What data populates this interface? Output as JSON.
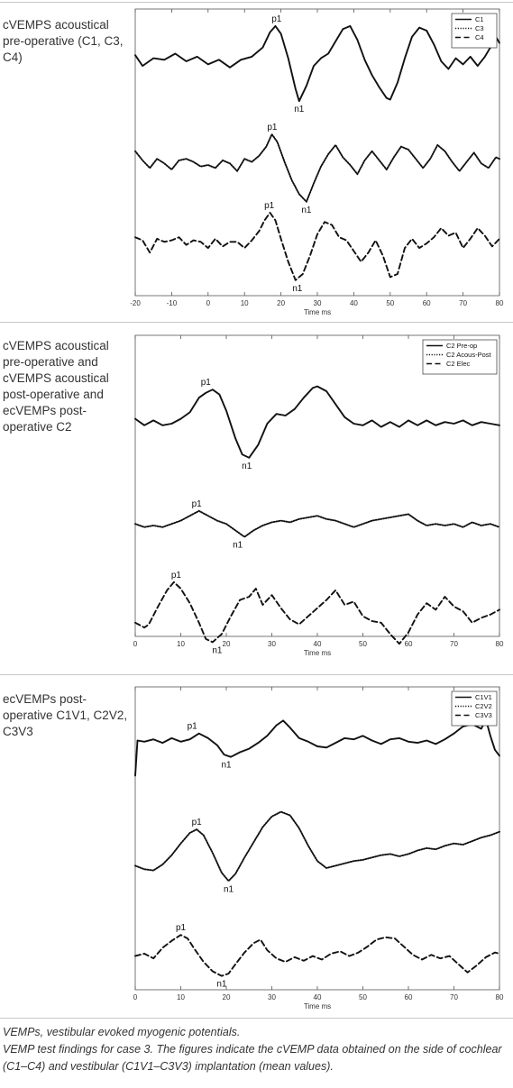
{
  "caption": {
    "abbrev": "VEMPs, vestibular evoked myogenic potentials.",
    "text": "VEMP test findings for case 3. The figures indicate the cVEMP data obtained on the side of cochlear (C1–C4) and vestibular (C1V1–C3V3) implantation (mean values)."
  },
  "chart_data": [
    {
      "type": "line",
      "row_label": "cVEMPS acoustical pre-operative (C1, C3, C4)",
      "xlabel": "Time ms",
      "xlim": [
        -20,
        80
      ],
      "xticks": [
        -20,
        -10,
        0,
        10,
        20,
        30,
        40,
        50,
        60,
        70,
        80
      ],
      "legend_position": "top-right",
      "series": [
        {
          "name": "C1",
          "style": "solid",
          "offset": 0,
          "x": [
            -20,
            -18,
            -15,
            -12,
            -9,
            -6,
            -3,
            0,
            3,
            6,
            9,
            12,
            15,
            17,
            18.5,
            20,
            22,
            24,
            25,
            27,
            29,
            31,
            33,
            35,
            37,
            39,
            41,
            43,
            45,
            47,
            49,
            50,
            52,
            54,
            56,
            58,
            60,
            62,
            64,
            66,
            68,
            70,
            72,
            74,
            76,
            78,
            79,
            80
          ],
          "y": [
            0.4,
            -0.3,
            0.2,
            0.1,
            0.5,
            0.0,
            0.3,
            -0.2,
            0.1,
            -0.4,
            0.1,
            0.3,
            0.9,
            1.9,
            2.3,
            1.8,
            0.2,
            -1.8,
            -2.6,
            -1.6,
            -0.3,
            0.2,
            0.5,
            1.3,
            2.1,
            2.3,
            1.4,
            0.1,
            -0.9,
            -1.7,
            -2.4,
            -2.5,
            -1.4,
            0.2,
            1.6,
            2.2,
            2.0,
            1.1,
            0.0,
            -0.5,
            0.2,
            -0.2,
            0.3,
            -0.3,
            0.3,
            1.1,
            1.6,
            1.2
          ]
        },
        {
          "name": "C3",
          "style": "dotted",
          "offset": 0,
          "x": [
            -20,
            -18,
            -16,
            -14,
            -12,
            -10,
            -8,
            -6,
            -4,
            -2,
            0,
            2,
            4,
            6,
            8,
            10,
            12,
            14,
            16,
            17.5,
            19,
            21,
            23,
            25,
            27,
            29,
            31,
            33,
            35,
            37,
            39,
            41,
            43,
            45,
            47,
            49,
            51,
            53,
            55,
            57,
            59,
            61,
            63,
            65,
            67,
            69,
            71,
            73,
            75,
            77,
            79,
            80
          ],
          "y": [
            0.9,
            0.3,
            -0.2,
            0.4,
            0.1,
            -0.3,
            0.3,
            0.4,
            0.2,
            -0.1,
            0.0,
            -0.2,
            0.3,
            0.1,
            -0.4,
            0.4,
            0.2,
            0.6,
            1.2,
            2.0,
            1.5,
            0.2,
            -1.0,
            -1.9,
            -2.4,
            -1.2,
            -0.1,
            0.7,
            1.3,
            0.5,
            0.0,
            -0.6,
            0.3,
            0.9,
            0.3,
            -0.3,
            0.5,
            1.2,
            1.0,
            0.4,
            -0.2,
            0.4,
            1.3,
            0.9,
            0.2,
            -0.4,
            0.2,
            0.8,
            0.1,
            -0.2,
            0.5,
            0.4
          ]
        },
        {
          "name": "C4",
          "style": "dashed",
          "offset": 0,
          "x": [
            -20,
            -18,
            -16,
            -14,
            -12,
            -10,
            -8,
            -6,
            -4,
            -2,
            0,
            2,
            4,
            6,
            8,
            10,
            12,
            14,
            15.5,
            17,
            18.5,
            20,
            22,
            24,
            26,
            28,
            30,
            32,
            34,
            36,
            38,
            40,
            42,
            44,
            46,
            48,
            50,
            52,
            54,
            56,
            58,
            60,
            62,
            64,
            66,
            68,
            70,
            72,
            74,
            76,
            78,
            80
          ],
          "y": [
            0.4,
            0.2,
            -0.6,
            0.3,
            0.1,
            0.2,
            0.4,
            -0.1,
            0.2,
            0.1,
            -0.3,
            0.3,
            -0.2,
            0.1,
            0.1,
            -0.3,
            0.2,
            0.8,
            1.5,
            2.0,
            1.5,
            0.3,
            -1.2,
            -2.4,
            -2.0,
            -0.8,
            0.6,
            1.4,
            1.2,
            0.4,
            0.2,
            -0.5,
            -1.2,
            -0.6,
            0.2,
            -0.8,
            -2.2,
            -2.0,
            -0.3,
            0.3,
            -0.3,
            0.0,
            0.4,
            1.0,
            0.5,
            0.7,
            -0.3,
            0.3,
            1.0,
            0.5,
            -0.2,
            0.3
          ]
        }
      ],
      "annotations": [
        {
          "text": "p1",
          "x": 18.8,
          "y": 2.3,
          "series": "C1",
          "pos": "above"
        },
        {
          "text": "n1",
          "x": 25,
          "y": -2.6,
          "series": "C1",
          "pos": "below"
        },
        {
          "text": "p1",
          "x": 17.6,
          "y": 2.0,
          "series": "C3",
          "pos": "above"
        },
        {
          "text": "n1",
          "x": 27,
          "y": -2.4,
          "series": "C3",
          "pos": "below"
        },
        {
          "text": "p1",
          "x": 16.8,
          "y": 2.0,
          "series": "C4",
          "pos": "above"
        },
        {
          "text": "n1",
          "x": 24.5,
          "y": -2.4,
          "series": "C4",
          "pos": "below"
        }
      ]
    },
    {
      "type": "line",
      "row_label": "cVEMPS acoustical pre-operative and cVEMPS acoustical post-operative and ecVEMPs post-operative C2",
      "xlabel": "Time ms",
      "xlim": [
        0,
        80
      ],
      "xticks": [
        0,
        10,
        20,
        30,
        40,
        50,
        60,
        70,
        80
      ],
      "legend_position": "top-right",
      "series": [
        {
          "name": "C2 Pre-op",
          "style": "solid",
          "offset": 0,
          "x": [
            0,
            2,
            4,
            6,
            8,
            10,
            12,
            14,
            15.5,
            17,
            18.5,
            20,
            22,
            23.5,
            25,
            27,
            29,
            31,
            33,
            35,
            37,
            39,
            40,
            42,
            44,
            46,
            48,
            50,
            52,
            54,
            56,
            58,
            60,
            62,
            64,
            66,
            68,
            70,
            72,
            74,
            76,
            78,
            80
          ],
          "y": [
            0.3,
            -0.1,
            0.2,
            -0.1,
            0.0,
            0.3,
            0.7,
            1.6,
            1.9,
            2.1,
            1.8,
            0.8,
            -0.9,
            -1.9,
            -2.1,
            -1.3,
            0.0,
            0.6,
            0.5,
            0.9,
            1.6,
            2.2,
            2.3,
            2.0,
            1.2,
            0.4,
            0.0,
            -0.1,
            0.2,
            -0.2,
            0.1,
            -0.2,
            0.2,
            -0.1,
            0.2,
            -0.1,
            0.1,
            0.0,
            0.2,
            -0.1,
            0.1,
            0.0,
            -0.1
          ]
        },
        {
          "name": "C2 Acous-Post",
          "style": "dotted",
          "offset": 0,
          "x": [
            0,
            2,
            4,
            6,
            8,
            10,
            12,
            14,
            16,
            18,
            20,
            22,
            24,
            26,
            28,
            30,
            32,
            34,
            36,
            38,
            40,
            42,
            44,
            46,
            48,
            50,
            52,
            54,
            56,
            58,
            60,
            62,
            64,
            66,
            68,
            70,
            72,
            74,
            76,
            78,
            80
          ],
          "y": [
            0.1,
            -0.1,
            0.0,
            -0.1,
            0.1,
            0.3,
            0.6,
            0.9,
            0.6,
            0.3,
            0.1,
            -0.3,
            -0.7,
            -0.3,
            0.0,
            0.2,
            0.3,
            0.2,
            0.4,
            0.5,
            0.6,
            0.4,
            0.3,
            0.1,
            -0.1,
            0.1,
            0.3,
            0.4,
            0.5,
            0.6,
            0.7,
            0.3,
            0.0,
            0.1,
            0.0,
            0.1,
            -0.1,
            0.2,
            0.0,
            0.1,
            -0.1
          ]
        },
        {
          "name": "C2 Elec",
          "style": "dashed",
          "offset": 0,
          "x": [
            0,
            2,
            3,
            5,
            7,
            8.5,
            10,
            12,
            14,
            15.5,
            17,
            19,
            21,
            23,
            25,
            26.5,
            28,
            30,
            32,
            34,
            36,
            38,
            40,
            42,
            44,
            46,
            48,
            50,
            52,
            54,
            56,
            58,
            60,
            62,
            64,
            66,
            68,
            70,
            72,
            74,
            76,
            78,
            80
          ],
          "y": [
            -0.6,
            -0.9,
            -0.7,
            0.4,
            1.4,
            1.9,
            1.5,
            0.6,
            -0.6,
            -1.6,
            -1.8,
            -1.3,
            -0.2,
            0.8,
            1.0,
            1.5,
            0.5,
            1.1,
            0.3,
            -0.4,
            -0.7,
            -0.2,
            0.3,
            0.8,
            1.4,
            0.5,
            0.7,
            -0.2,
            -0.5,
            -0.6,
            -1.3,
            -1.9,
            -1.2,
            -0.1,
            0.6,
            0.2,
            1.0,
            0.4,
            0.1,
            -0.6,
            -0.3,
            -0.1,
            0.2
          ]
        }
      ],
      "annotations": [
        {
          "text": "p1",
          "x": 15.5,
          "y": 2.1,
          "series": "C2 Pre-op",
          "pos": "above"
        },
        {
          "text": "n1",
          "x": 24.5,
          "y": -2.1,
          "series": "C2 Pre-op",
          "pos": "below"
        },
        {
          "text": "p1",
          "x": 13.5,
          "y": 0.9,
          "series": "C2 Acous-Post",
          "pos": "above"
        },
        {
          "text": "n1",
          "x": 22.5,
          "y": -0.7,
          "series": "C2 Acous-Post",
          "pos": "below"
        },
        {
          "text": "p1",
          "x": 9,
          "y": 1.9,
          "series": "C2 Elec",
          "pos": "above"
        },
        {
          "text": "n1",
          "x": 18,
          "y": -1.8,
          "series": "C2 Elec",
          "pos": "below"
        }
      ]
    },
    {
      "type": "line",
      "row_label": "ecVEMPs post-operative C1V1, C2V2, C3V3",
      "xlabel": "Time ms",
      "xlim": [
        0,
        80
      ],
      "xticks": [
        0,
        10,
        20,
        30,
        40,
        50,
        60,
        70,
        80
      ],
      "legend_position": "top-right",
      "series": [
        {
          "name": "C1V1",
          "style": "solid",
          "offset": 0,
          "x": [
            0,
            0.5,
            2,
            4,
            6,
            8,
            10,
            12,
            14,
            16,
            18,
            19.5,
            21,
            23,
            25,
            27,
            29,
            31,
            32.5,
            34,
            36,
            38,
            40,
            42,
            44,
            46,
            48,
            50,
            52,
            54,
            56,
            58,
            60,
            62,
            64,
            66,
            68,
            70,
            72,
            74,
            76,
            77,
            78,
            79,
            80
          ],
          "y": [
            -2.5,
            0.5,
            0.4,
            0.6,
            0.3,
            0.7,
            0.4,
            0.6,
            1.1,
            0.7,
            0.1,
            -0.7,
            -0.9,
            -0.5,
            -0.2,
            0.3,
            0.9,
            1.8,
            2.2,
            1.6,
            0.7,
            0.4,
            0.0,
            -0.1,
            0.3,
            0.7,
            0.6,
            0.9,
            0.5,
            0.2,
            0.6,
            0.7,
            0.4,
            0.3,
            0.5,
            0.2,
            0.6,
            1.1,
            1.7,
            1.9,
            1.5,
            2.3,
            0.9,
            -0.3,
            -0.8
          ]
        },
        {
          "name": "C2V2",
          "style": "dotted",
          "offset": 0,
          "x": [
            0,
            2,
            4,
            6,
            8,
            10,
            12,
            13.5,
            15,
            17,
            19,
            20.5,
            22,
            24,
            26,
            28,
            30,
            32,
            34,
            36,
            38,
            40,
            42,
            44,
            46,
            48,
            50,
            52,
            54,
            56,
            58,
            60,
            62,
            64,
            66,
            68,
            70,
            72,
            74,
            76,
            78,
            80
          ],
          "y": [
            -0.8,
            -1.1,
            -1.2,
            -0.7,
            0.1,
            1.1,
            2.0,
            2.3,
            1.8,
            0.3,
            -1.4,
            -2.1,
            -1.5,
            -0.1,
            1.2,
            2.5,
            3.4,
            3.8,
            3.5,
            2.4,
            0.9,
            -0.4,
            -1.0,
            -0.8,
            -0.6,
            -0.4,
            -0.3,
            -0.1,
            0.1,
            0.2,
            0.0,
            0.2,
            0.5,
            0.7,
            0.6,
            0.9,
            1.1,
            1.0,
            1.3,
            1.6,
            1.8,
            2.1
          ]
        },
        {
          "name": "C3V3",
          "style": "dashed",
          "offset": 0,
          "x": [
            0,
            2,
            4,
            6,
            8,
            10,
            11.5,
            13,
            15,
            17,
            19,
            20.5,
            22,
            24,
            26,
            27.5,
            29,
            31,
            33,
            35,
            37,
            39,
            41,
            43,
            45,
            47,
            49,
            51,
            53,
            55,
            57,
            59,
            61,
            63,
            65,
            67,
            69,
            71,
            73,
            75,
            77,
            79,
            80
          ],
          "y": [
            -0.2,
            0.0,
            -0.4,
            0.5,
            1.1,
            1.6,
            1.3,
            0.4,
            -0.7,
            -1.5,
            -1.9,
            -1.7,
            -0.9,
            0.1,
            0.9,
            1.2,
            0.3,
            -0.4,
            -0.7,
            -0.3,
            -0.6,
            -0.2,
            -0.5,
            0.0,
            0.2,
            -0.2,
            0.1,
            0.6,
            1.2,
            1.4,
            1.3,
            0.6,
            -0.1,
            -0.5,
            -0.1,
            -0.4,
            -0.2,
            -0.9,
            -1.6,
            -1.0,
            -0.3,
            0.1,
            0.0
          ]
        }
      ],
      "annotations": [
        {
          "text": "p1",
          "x": 12.5,
          "y": 1.1,
          "series": "C1V1",
          "pos": "above"
        },
        {
          "text": "n1",
          "x": 20,
          "y": -0.9,
          "series": "C1V1",
          "pos": "below"
        },
        {
          "text": "p1",
          "x": 13.5,
          "y": 2.3,
          "series": "C2V2",
          "pos": "above"
        },
        {
          "text": "n1",
          "x": 20.5,
          "y": -2.1,
          "series": "C2V2",
          "pos": "below"
        },
        {
          "text": "p1",
          "x": 10,
          "y": 1.6,
          "series": "C3V3",
          "pos": "above"
        },
        {
          "text": "n1",
          "x": 19,
          "y": -1.9,
          "series": "C3V3",
          "pos": "below"
        }
      ]
    }
  ]
}
